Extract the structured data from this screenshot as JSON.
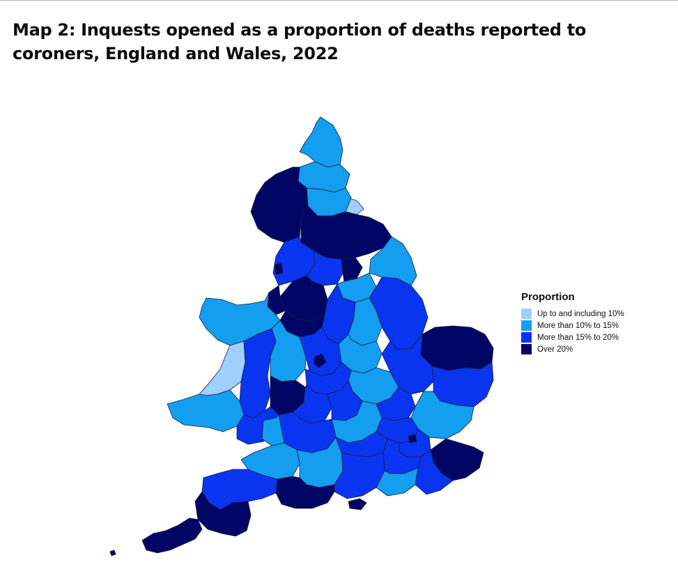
{
  "title": "Map 2: Inquests opened as a proportion of deaths reported to coroners, England and Wales, 2022",
  "legend": {
    "title": "Proportion",
    "items": [
      {
        "label": "Up to and including 10%",
        "color": "#9fcffb"
      },
      {
        "label": "More than 10% to 15%",
        "color": "#139ef0"
      },
      {
        "label": "More than 15% to 20%",
        "color": "#0a35f0"
      },
      {
        "label": "Over 20%",
        "color": "#010665"
      }
    ]
  },
  "colors": {
    "border": "#1a1a40",
    "background": "#ffffff",
    "rule": "#b1b4b6"
  }
}
